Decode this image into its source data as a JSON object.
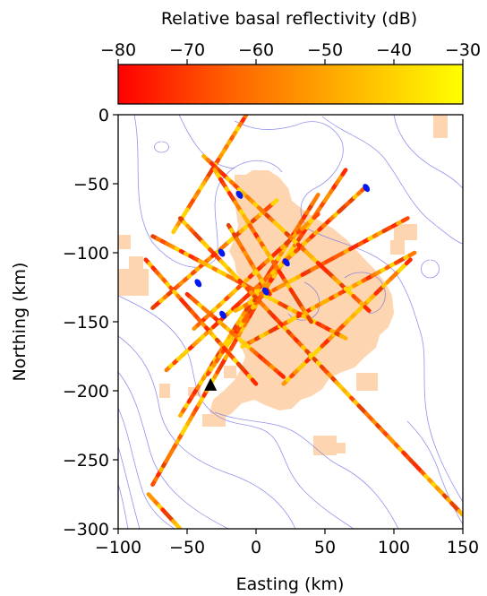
{
  "chart_data": {
    "type": "scatter",
    "title": "",
    "xlabel": "Easting (km)",
    "ylabel": "Northing (km)",
    "xlim": [
      -100,
      150
    ],
    "ylim": [
      -300,
      0
    ],
    "xticks": [
      -100,
      -50,
      0,
      50,
      100,
      150
    ],
    "yticks": [
      0,
      -50,
      -100,
      -150,
      -200,
      -250,
      -300
    ],
    "xtick_labels": [
      "−100",
      "−50",
      "0",
      "50",
      "100",
      "150"
    ],
    "ytick_labels": [
      "0",
      "−50",
      "−100",
      "−150",
      "−200",
      "−250",
      "−300"
    ],
    "grid": false,
    "colorbar": {
      "label": "Relative basal reflectivity (dB)",
      "range": [
        -80,
        -30
      ],
      "ticks": [
        -80,
        -70,
        -60,
        -50,
        -40,
        -30
      ],
      "tick_labels": [
        "−80",
        "−70",
        "−60",
        "−50",
        "−40",
        "−30"
      ],
      "colormap": [
        "#ff0000",
        "#ff6400",
        "#ffb400",
        "#ffff00"
      ],
      "placement": "top"
    },
    "flight_lines": [
      {
        "start": [
          -7,
          0
        ],
        "end": [
          -60,
          -85
        ]
      },
      {
        "start": [
          -75,
          -268
        ],
        "end": [
          15,
          -112
        ]
      },
      {
        "start": [
          -55,
          -218
        ],
        "end": [
          45,
          -58
        ]
      },
      {
        "start": [
          -35,
          -188
        ],
        "end": [
          65,
          -40
        ]
      },
      {
        "start": [
          -65,
          -185
        ],
        "end": [
          80,
          -52
        ]
      },
      {
        "start": [
          -45,
          -155
        ],
        "end": [
          45,
          -72
        ]
      },
      {
        "start": [
          -15,
          -142
        ],
        "end": [
          110,
          -75
        ]
      },
      {
        "start": [
          -10,
          -168
        ],
        "end": [
          115,
          -100
        ]
      },
      {
        "start": [
          20,
          -195
        ],
        "end": [
          112,
          -105
        ]
      },
      {
        "start": [
          -75,
          -140
        ],
        "end": [
          15,
          -62
        ]
      },
      {
        "start": [
          -75,
          -88
        ],
        "end": [
          65,
          -162
        ]
      },
      {
        "start": [
          -55,
          -75
        ],
        "end": [
          150,
          -290
        ]
      },
      {
        "start": [
          -38,
          -30
        ],
        "end": [
          82,
          -142
        ]
      },
      {
        "start": [
          -80,
          -105
        ],
        "end": [
          0,
          -195
        ]
      },
      {
        "start": [
          -30,
          -40
        ],
        "end": [
          40,
          -150
        ]
      },
      {
        "start": [
          -50,
          -130
        ],
        "end": [
          20,
          -190
        ]
      },
      {
        "start": [
          -20,
          -80
        ],
        "end": [
          10,
          -130
        ]
      },
      {
        "start": [
          -78,
          -275
        ],
        "end": [
          -55,
          -300
        ]
      }
    ],
    "low_values": [
      {
        "x": -12,
        "y": -58
      },
      {
        "x": -25,
        "y": -100
      },
      {
        "x": -42,
        "y": -122
      },
      {
        "x": -24,
        "y": -145
      },
      {
        "x": 7,
        "y": -128
      },
      {
        "x": 22,
        "y": -107
      },
      {
        "x": 80,
        "y": -53
      }
    ],
    "marker": {
      "x": -33,
      "y": -196,
      "symbol": "triangle"
    },
    "colors": {
      "ice_region": "#fdd5b1",
      "contours": "#6d6de6",
      "low_values": "#0018ee",
      "marker": "#000000"
    }
  }
}
